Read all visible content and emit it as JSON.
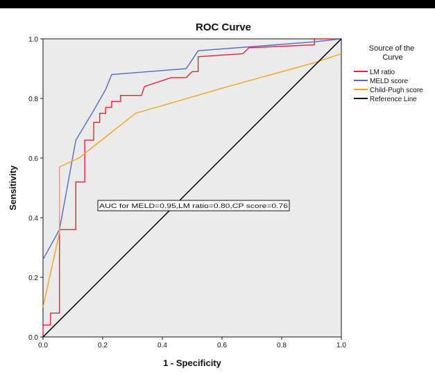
{
  "chart_data": {
    "type": "line",
    "title": "ROC Curve",
    "xlabel": "1 - Specificity",
    "ylabel": "Sensitivity",
    "xlim": [
      0.0,
      1.0
    ],
    "ylim": [
      0.0,
      1.0
    ],
    "xticks": [
      "0.0",
      "0.2",
      "0.4",
      "0.6",
      "0.8",
      "1.0"
    ],
    "yticks": [
      "0.0",
      "0.2",
      "0.4",
      "0.6",
      "0.8",
      "1.0"
    ],
    "grid": false,
    "legend": {
      "title": "Source of the Curve",
      "placement": "right"
    },
    "annotation": "AUC for MELD=0.95,LM ratio=0.80,CP score=0.76",
    "series": [
      {
        "name": "LM ratio",
        "color": "#e8213b",
        "points": [
          [
            0,
            0
          ],
          [
            0,
            0.04
          ],
          [
            0.025,
            0.04
          ],
          [
            0.025,
            0.08
          ],
          [
            0.055,
            0.08
          ],
          [
            0.055,
            0.36
          ],
          [
            0.11,
            0.36
          ],
          [
            0.11,
            0.52
          ],
          [
            0.14,
            0.52
          ],
          [
            0.14,
            0.66
          ],
          [
            0.17,
            0.66
          ],
          [
            0.17,
            0.72
          ],
          [
            0.19,
            0.72
          ],
          [
            0.19,
            0.75
          ],
          [
            0.21,
            0.75
          ],
          [
            0.21,
            0.77
          ],
          [
            0.23,
            0.77
          ],
          [
            0.23,
            0.79
          ],
          [
            0.26,
            0.79
          ],
          [
            0.26,
            0.81
          ],
          [
            0.33,
            0.81
          ],
          [
            0.34,
            0.84
          ],
          [
            0.43,
            0.87
          ],
          [
            0.48,
            0.87
          ],
          [
            0.5,
            0.89
          ],
          [
            0.52,
            0.89
          ],
          [
            0.52,
            0.94
          ],
          [
            0.67,
            0.95
          ],
          [
            0.69,
            0.97
          ],
          [
            0.91,
            0.98
          ],
          [
            0.91,
            1.0
          ],
          [
            1.0,
            1.0
          ]
        ]
      },
      {
        "name": "MELD score",
        "color": "#5468c8",
        "points": [
          [
            0,
            0.26
          ],
          [
            0.055,
            0.36
          ],
          [
            0.11,
            0.66
          ],
          [
            0.17,
            0.76
          ],
          [
            0.21,
            0.83
          ],
          [
            0.23,
            0.88
          ],
          [
            0.48,
            0.9
          ],
          [
            0.52,
            0.96
          ],
          [
            0.91,
            0.99
          ],
          [
            1.0,
            1.0
          ]
        ]
      },
      {
        "name": "Child-Pugh score",
        "color": "#f2a21c",
        "points": [
          [
            0,
            0.1
          ],
          [
            0.055,
            0.35
          ],
          [
            0.055,
            0.57
          ],
          [
            0.12,
            0.6
          ],
          [
            0.31,
            0.75
          ],
          [
            0.62,
            0.84
          ],
          [
            0.91,
            0.92
          ],
          [
            1.0,
            0.95
          ]
        ]
      },
      {
        "name": "Reference Line",
        "color": "#111111",
        "points": [
          [
            0,
            0
          ],
          [
            1.0,
            1.0
          ]
        ]
      }
    ]
  },
  "colors": {
    "plot_background": "#ebebeb",
    "axis": "#111111"
  }
}
